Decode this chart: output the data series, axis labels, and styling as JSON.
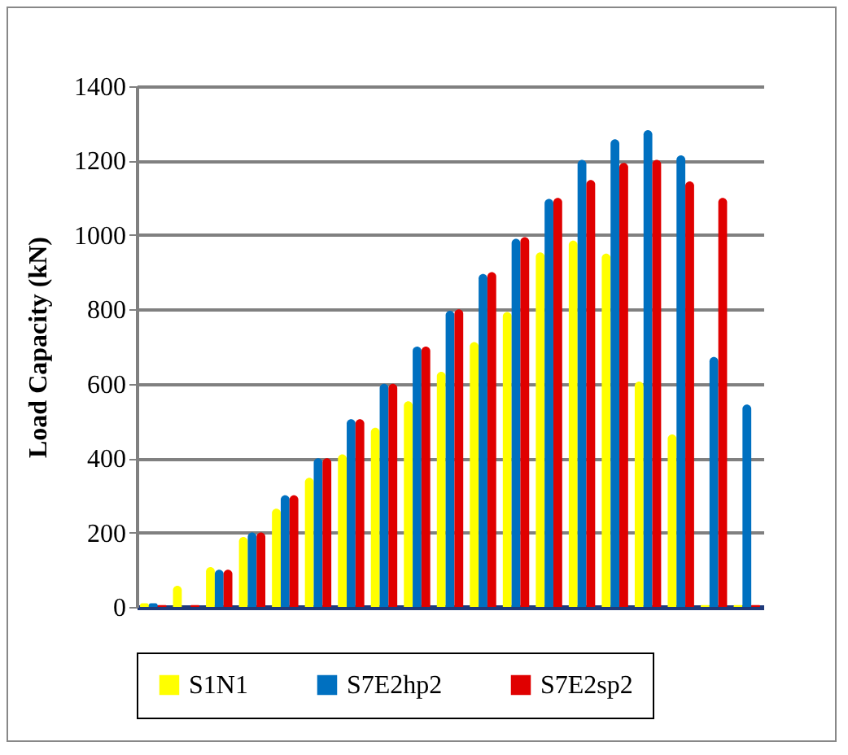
{
  "chart_data": {
    "type": "bar",
    "ylabel": "Load Capacity (kN)",
    "categories": [
      null,
      null,
      null,
      null,
      null,
      null,
      null,
      null,
      null,
      null,
      null,
      null,
      null,
      null,
      null,
      null,
      null,
      null,
      null
    ],
    "series": [
      {
        "name": "S1N1",
        "color": "#ffff00",
        "values": [
          10,
          57,
          107,
          188,
          264,
          347,
          410,
          482,
          553,
          632,
          712,
          793,
          953,
          985,
          950,
          606,
          464,
          5,
          5
        ]
      },
      {
        "name": "S7E2hp2",
        "color": "#0070c0",
        "values": [
          10,
          0,
          100,
          200,
          300,
          400,
          505,
          600,
          700,
          796,
          895,
          990,
          1097,
          1202,
          1257,
          1282,
          1214,
          672,
          544
        ]
      },
      {
        "name": "S7E2sp2",
        "color": "#e00000",
        "values": [
          5,
          5,
          100,
          200,
          300,
          400,
          505,
          600,
          700,
          800,
          900,
          994,
          1100,
          1148,
          1194,
          1202,
          1144,
          1100,
          5
        ]
      }
    ],
    "ylim": [
      0,
      1400
    ],
    "yticks": [
      0,
      200,
      400,
      600,
      800,
      1000,
      1200,
      1400
    ],
    "grid": "y",
    "legend": "bottom",
    "tick_labels": "y"
  }
}
